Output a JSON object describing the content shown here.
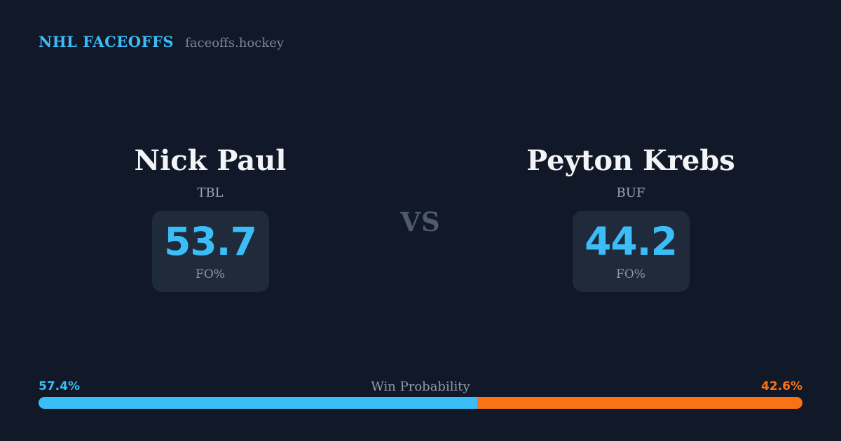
{
  "header": {
    "title": "NHL FACEOFFS",
    "site": "faceoffs.hockey"
  },
  "matchup": {
    "vs_label": "VS"
  },
  "players": {
    "left": {
      "name": "Nick Paul",
      "team": "TBL",
      "stat_value": "53.7",
      "stat_label": "FO%",
      "win_probability_label": "57.4%",
      "accent_color": "#3bbdf8"
    },
    "right": {
      "name": "Peyton Krebs",
      "team": "BUF",
      "stat_value": "44.2",
      "stat_label": "FO%",
      "win_probability_label": "42.6%",
      "accent_color": "#f97316"
    }
  },
  "win_probability": {
    "label": "Win Probability",
    "left_pct": 57.4,
    "right_pct": 42.6
  },
  "colors": {
    "background": "#111827",
    "card": "#1f2a3a",
    "accent_blue": "#3bbdf8",
    "accent_orange": "#f97316",
    "text_primary": "#f2f4f8",
    "text_muted": "#8d96a7",
    "vs_text": "#4d5a70"
  },
  "chart_data": [
    {
      "type": "table",
      "title": "Faceoff Percentage (FO%)",
      "categories": [
        "Nick Paul (TBL)",
        "Peyton Krebs (BUF)"
      ],
      "values": [
        53.7,
        44.2
      ]
    },
    {
      "type": "bar",
      "title": "Win Probability",
      "categories": [
        "Nick Paul (TBL)",
        "Peyton Krebs (BUF)"
      ],
      "values": [
        57.4,
        42.6
      ],
      "unit": "%",
      "xlim": [
        0,
        100
      ],
      "orientation": "horizontal-stacked",
      "colors": [
        "#3bbdf8",
        "#f97316"
      ]
    }
  ]
}
